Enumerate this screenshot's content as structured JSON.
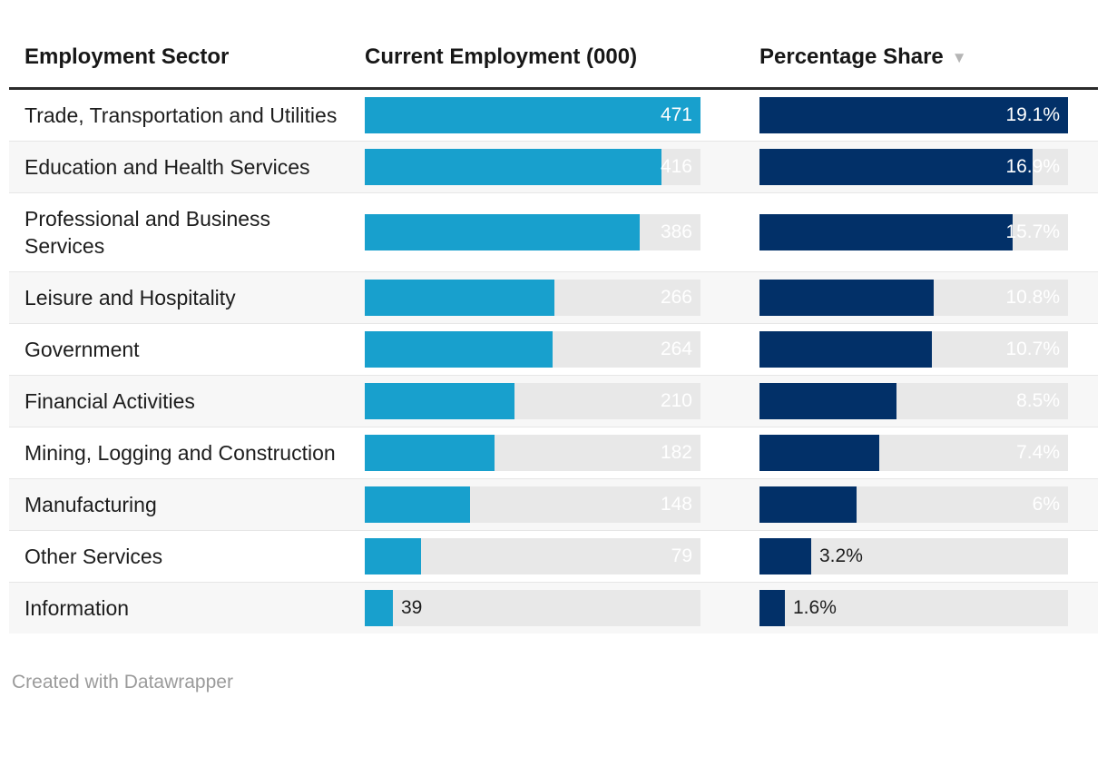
{
  "header": {
    "columns": [
      {
        "label": "Employment Sector"
      },
      {
        "label": "Current Employment (000)"
      },
      {
        "label": "Percentage Share",
        "sort_icon": "▼",
        "sorted": "descending"
      }
    ]
  },
  "chart_data": {
    "type": "table",
    "columns": [
      "Employment Sector",
      "Current Employment (000)",
      "Percentage Share"
    ],
    "employment_axis_max": 471,
    "share_axis_max": 19.1,
    "sort": {
      "column": "Percentage Share",
      "direction": "desc"
    },
    "rows": [
      {
        "sector": "Trade, Transportation and Utilities",
        "employment": 471,
        "employment_label": "471",
        "share": 19.1,
        "share_label": "19.1%"
      },
      {
        "sector": "Education and Health Services",
        "employment": 416,
        "employment_label": "416",
        "share": 16.9,
        "share_label": "16.9%"
      },
      {
        "sector": "Professional and Business Services",
        "employment": 386,
        "employment_label": "386",
        "share": 15.7,
        "share_label": "15.7%"
      },
      {
        "sector": "Leisure and Hospitality",
        "employment": 266,
        "employment_label": "266",
        "share": 10.8,
        "share_label": "10.8%"
      },
      {
        "sector": "Government",
        "employment": 264,
        "employment_label": "264",
        "share": 10.7,
        "share_label": "10.7%"
      },
      {
        "sector": "Financial Activities",
        "employment": 210,
        "employment_label": "210",
        "share": 8.5,
        "share_label": "8.5%"
      },
      {
        "sector": "Mining, Logging and Construction",
        "employment": 182,
        "employment_label": "182",
        "share": 7.4,
        "share_label": "7.4%"
      },
      {
        "sector": "Manufacturing",
        "employment": 148,
        "employment_label": "148",
        "share": 6,
        "share_label": "6%"
      },
      {
        "sector": "Other Services",
        "employment": 79,
        "employment_label": "79",
        "share": 3.2,
        "share_label": "3.2%"
      },
      {
        "sector": "Information",
        "employment": 39,
        "employment_label": "39",
        "share": 1.6,
        "share_label": "1.6%"
      }
    ]
  },
  "footer": {
    "credit": "Created with Datawrapper"
  },
  "colors": {
    "employment_bar": "#18a0cd",
    "share_bar": "#023068",
    "bar_track": "#e8e8e8",
    "row_alternate": "#f7f7f7"
  }
}
